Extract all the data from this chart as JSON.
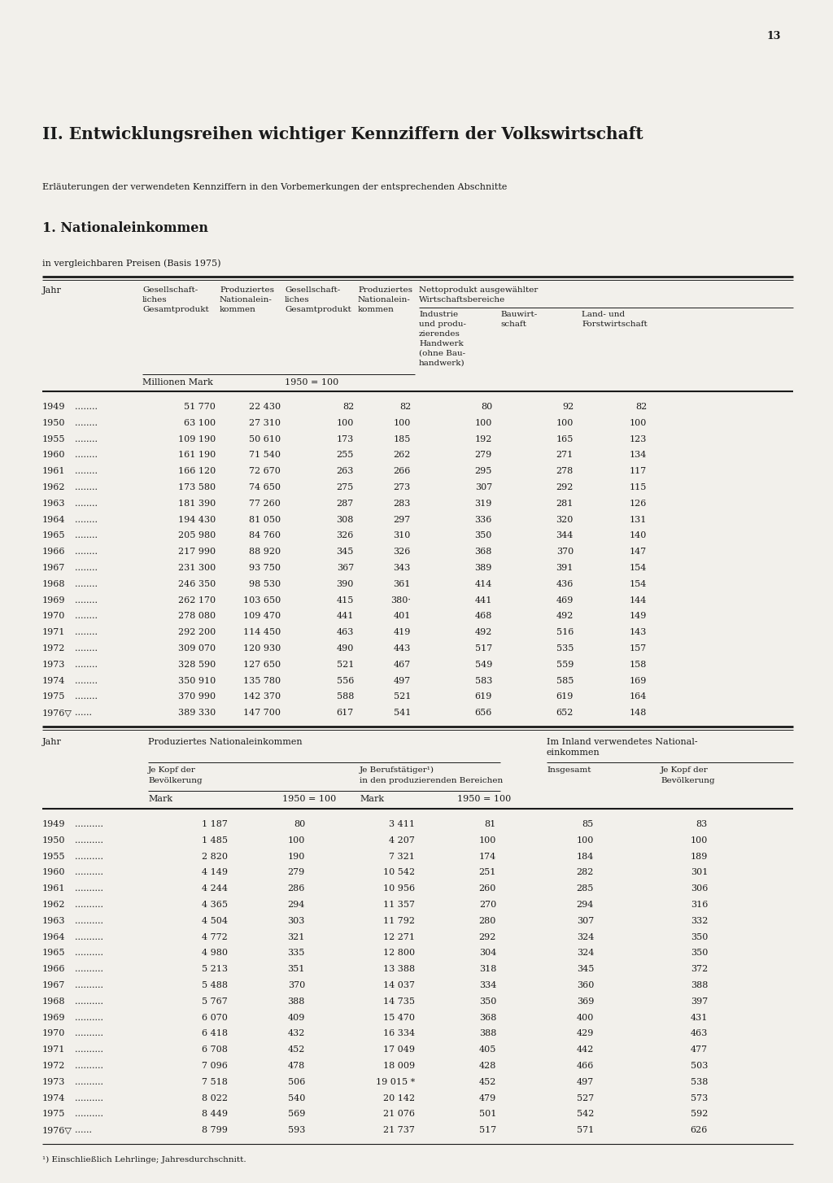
{
  "page_number": "13",
  "main_title": "II. Entwicklungsreihen wichtiger Kennziffern der Volkswirtschaft",
  "subtitle": "Erläuterungen der verwendeten Kennziffern in den Vorbemerkungen der entsprechenden Abschnitte",
  "section_title": "1. Nationaleinkommen",
  "section_note": "in vergleichbaren Preisen (Basis 1975)",
  "table1_col2_hdr": [
    "Gesellschaft-",
    "liches",
    "Gesamtprodukt"
  ],
  "table1_col3_hdr": [
    "Produziertes",
    "Nationalein-",
    "kommen"
  ],
  "table1_col4_hdr": [
    "Gesellschaft-",
    "liches",
    "Gesamtprodukt"
  ],
  "table1_col5_hdr": [
    "Produziertes",
    "Nationalein-",
    "kommen"
  ],
  "table1_netto_hdr": "Nettoprodukt ausgewählter Wirtschaftsbereiche",
  "table1_col6_hdr": [
    "Industrie",
    "und produ-",
    "zierendes",
    "Handwerk",
    "(ohne Bau-",
    "handwerk)"
  ],
  "table1_col7_hdr": [
    "Bauwirt-",
    "schaft"
  ],
  "table1_col8_hdr": [
    "Land- und",
    "Forstwirtschaft"
  ],
  "table1_submark": "Millionen Mark",
  "table1_sub100": "1950 = 100",
  "table1_data": [
    [
      "1949",
      "........",
      "51 770",
      "22 430",
      "82",
      "82",
      "80",
      "92",
      "82"
    ],
    [
      "1950",
      "........",
      "63 100",
      "27 310",
      "100",
      "100",
      "100",
      "100",
      "100"
    ],
    [
      "1955",
      "........",
      "109 190",
      "50 610",
      "173",
      "185",
      "192",
      "165",
      "123"
    ],
    [
      "1960",
      "........",
      "161 190",
      "71 540",
      "255",
      "262",
      "279",
      "271",
      "134"
    ],
    [
      "1961",
      "........",
      "166 120",
      "72 670",
      "263",
      "266",
      "295",
      "278",
      "117"
    ],
    [
      "1962",
      "........",
      "173 580",
      "74 650",
      "275",
      "273",
      "307",
      "292",
      "115"
    ],
    [
      "1963",
      "........",
      "181 390",
      "77 260",
      "287",
      "283",
      "319",
      "281",
      "126"
    ],
    [
      "1964",
      "........",
      "194 430",
      "81 050",
      "308",
      "297",
      "336",
      "320",
      "131"
    ],
    [
      "1965",
      "........",
      "205 980",
      "84 760",
      "326",
      "310",
      "350",
      "344",
      "140"
    ],
    [
      "1966",
      "........",
      "217 990",
      "88 920",
      "345",
      "326",
      "368",
      "370",
      "147"
    ],
    [
      "1967",
      "........",
      "231 300",
      "93 750",
      "367",
      "343",
      "389",
      "391",
      "154"
    ],
    [
      "1968",
      "........",
      "246 350",
      "98 530",
      "390",
      "361",
      "414",
      "436",
      "154"
    ],
    [
      "1969",
      "........",
      "262 170",
      "103 650",
      "415",
      "380·",
      "441",
      "469",
      "144"
    ],
    [
      "1970",
      "........",
      "278 080",
      "109 470",
      "441",
      "401",
      "468",
      "492",
      "149"
    ],
    [
      "1971",
      "........",
      "292 200",
      "114 450",
      "463",
      "419",
      "492",
      "516",
      "143"
    ],
    [
      "1972",
      "........",
      "309 070",
      "120 930",
      "490",
      "443",
      "517",
      "535",
      "157"
    ],
    [
      "1973",
      "........",
      "328 590",
      "127 650",
      "521",
      "467",
      "549",
      "559",
      "158"
    ],
    [
      "1974",
      "........",
      "350 910",
      "135 780",
      "556",
      "497",
      "583",
      "585",
      "169"
    ],
    [
      "1975",
      "........",
      "370 990",
      "142 370",
      "588",
      "521",
      "619",
      "619",
      "164"
    ],
    [
      "1976▽",
      "......",
      "389 330",
      "147 700",
      "617",
      "541",
      "656",
      "652",
      "148"
    ]
  ],
  "table2_hdr_prod": "Produziertes Nationaleinkommen",
  "table2_hdr_inland": [
    "Im Inland verwendetes National-",
    "einkommen"
  ],
  "table2_col2_hdr": [
    "Je Kopf der",
    "Bevölkerung"
  ],
  "table2_col3_hdr": [
    "Je Berufstätiger¹)",
    "in den produzierenden Bereichen"
  ],
  "table2_col4_hdr": "Insgesamt",
  "table2_col5_hdr": [
    "Je Kopf der",
    "Bevölkerung"
  ],
  "table2_mark": "Mark",
  "table2_100a": "1950 = 100",
  "table2_mark2": "Mark",
  "table2_100b": "1950 = 100",
  "table2_data": [
    [
      "1949",
      "..........",
      "1 187",
      "80",
      "3 411",
      "81",
      "85",
      "83"
    ],
    [
      "1950",
      "..........",
      "1 485",
      "100",
      "4 207",
      "100",
      "100",
      "100"
    ],
    [
      "1955",
      "..........",
      "2 820",
      "190",
      "7 321",
      "174",
      "184",
      "189"
    ],
    [
      "1960",
      "..........",
      "4 149",
      "279",
      "10 542",
      "251",
      "282",
      "301"
    ],
    [
      "1961",
      "..........",
      "4 244",
      "286",
      "10 956",
      "260",
      "285",
      "306"
    ],
    [
      "1962",
      "..........",
      "4 365",
      "294",
      "11 357",
      "270",
      "294",
      "316"
    ],
    [
      "1963",
      "..........",
      "4 504",
      "303",
      "11 792",
      "280",
      "307",
      "332"
    ],
    [
      "1964",
      "..........",
      "4 772",
      "321",
      "12 271",
      "292",
      "324",
      "350"
    ],
    [
      "1965",
      "..........",
      "4 980",
      "335",
      "12 800",
      "304",
      "324",
      "350"
    ],
    [
      "1966",
      "..........",
      "5 213",
      "351",
      "13 388",
      "318",
      "345",
      "372"
    ],
    [
      "1967",
      "..........",
      "5 488",
      "370",
      "14 037",
      "334",
      "360",
      "388"
    ],
    [
      "1968",
      "..........",
      "5 767",
      "388",
      "14 735",
      "350",
      "369",
      "397"
    ],
    [
      "1969",
      "..........",
      "6 070",
      "409",
      "15 470",
      "368",
      "400",
      "431"
    ],
    [
      "1970",
      "..........",
      "6 418",
      "432",
      "16 334",
      "388",
      "429",
      "463"
    ],
    [
      "1971",
      "..........",
      "6 708",
      "452",
      "17 049",
      "405",
      "442",
      "477"
    ],
    [
      "1972",
      "..........",
      "7 096",
      "478",
      "18 009",
      "428",
      "466",
      "503"
    ],
    [
      "1973",
      "..........",
      "7 518",
      "506",
      "19 015 *",
      "452",
      "497",
      "538"
    ],
    [
      "1974",
      "..........",
      "8 022",
      "540",
      "20 142",
      "479",
      "527",
      "573"
    ],
    [
      "1975",
      "..........",
      "8 449",
      "569",
      "21 076",
      "501",
      "542",
      "592"
    ],
    [
      "1976▽",
      "......",
      "8 799",
      "593",
      "21 737",
      "517",
      "571",
      "626"
    ]
  ],
  "footnote": "¹) Einschließlich Lehrlinge; Jahresdurchschnitt.",
  "bg_color": "#f2f0eb",
  "text_color": "#1a1a1a",
  "line_color": "#1a1a1a"
}
